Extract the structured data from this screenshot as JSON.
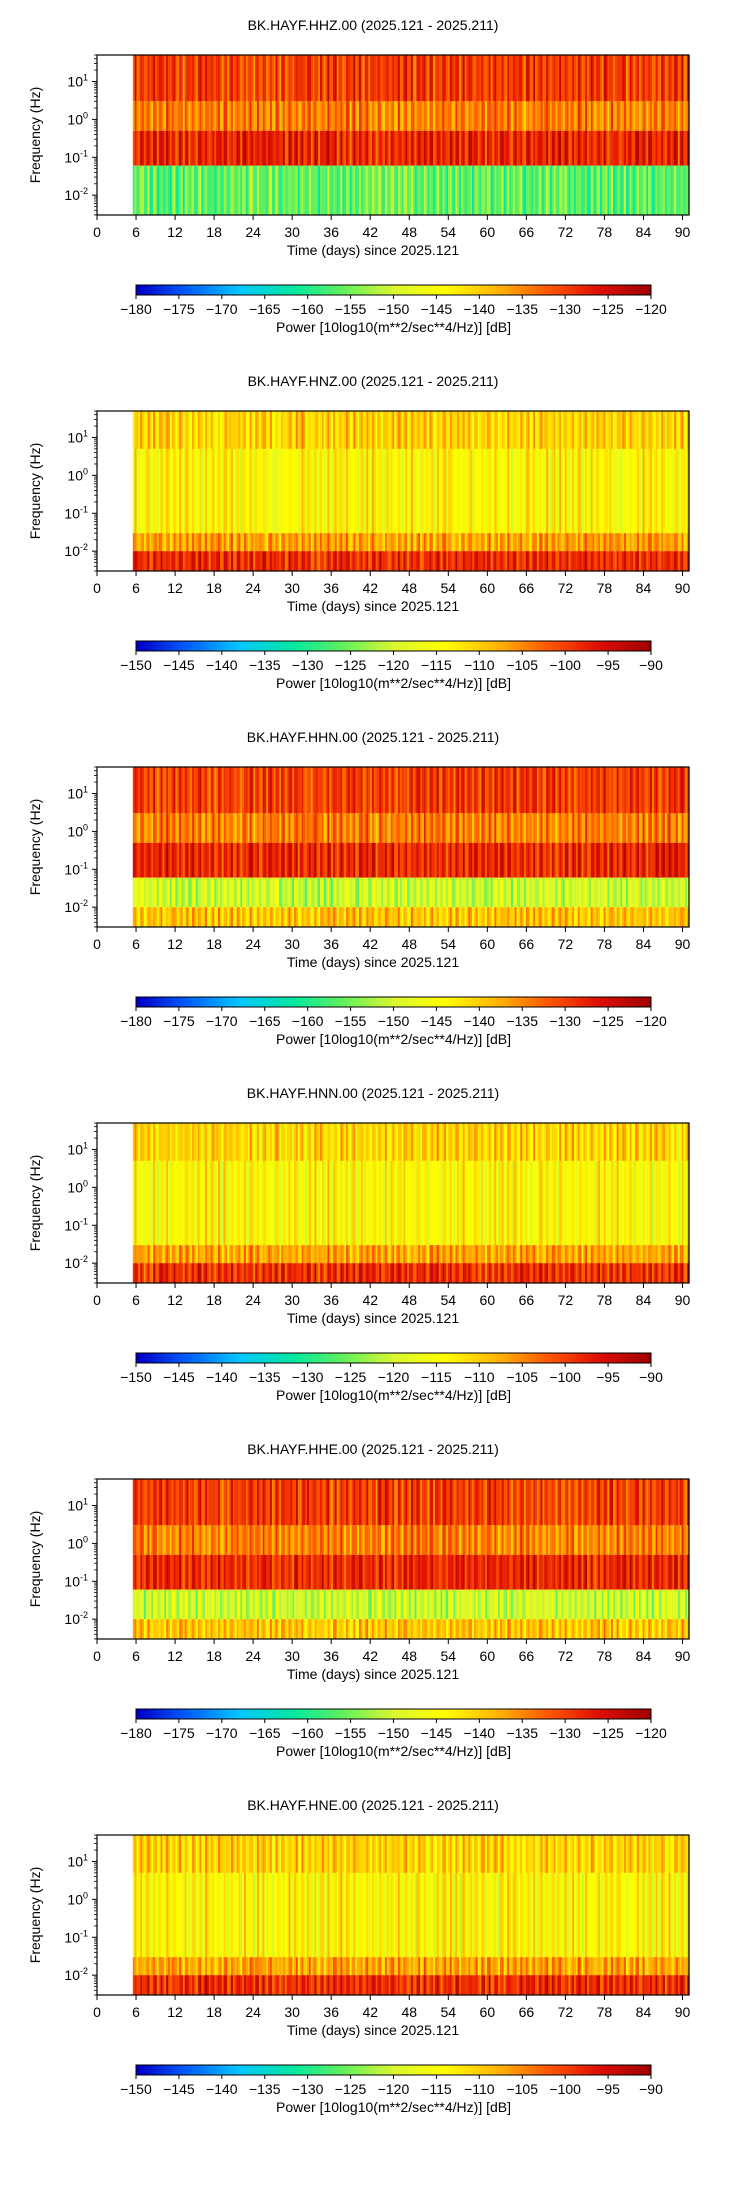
{
  "colors": {
    "colormap": [
      "#0000c8",
      "#0060ff",
      "#00c8ff",
      "#00e8a0",
      "#60f060",
      "#d8f830",
      "#ffff00",
      "#ffb800",
      "#ff5a00",
      "#e01000",
      "#a00000"
    ],
    "gap_fill": "#ffffff",
    "frame": "#000000"
  },
  "chart_data": [
    {
      "type": "heatmap",
      "title": "BK.HAYF.HHZ.00 (2025.121 - 2025.211)",
      "xlabel": "Time (days) since 2025.121",
      "ylabel": "Frequency (Hz)",
      "xticks": [
        "0",
        "6",
        "12",
        "18",
        "24",
        "30",
        "36",
        "42",
        "48",
        "54",
        "60",
        "66",
        "72",
        "78",
        "84",
        "90"
      ],
      "xlim": [
        0,
        91
      ],
      "data_start_day": 5.5,
      "yscale": "log",
      "ylim": [
        0.003,
        50
      ],
      "yticks": [
        {
          "value": 0.01,
          "base": "10",
          "exp": "-2"
        },
        {
          "value": 0.1,
          "base": "10",
          "exp": "-1"
        },
        {
          "value": 1,
          "base": "10",
          "exp": "0"
        },
        {
          "value": 10,
          "base": "10",
          "exp": "1"
        }
      ],
      "colorbar": {
        "label": "Power [10log10(m**2/sec**4/Hz)] [dB]",
        "range": [
          -180,
          -120
        ],
        "ticks": [
          "−180",
          "−175",
          "−170",
          "−165",
          "−160",
          "−155",
          "−150",
          "−145",
          "−140",
          "−135",
          "−130",
          "−125",
          "−120"
        ]
      },
      "bands": [
        {
          "fmin": 3,
          "fmax": 50,
          "level": 0.84
        },
        {
          "fmin": 0.5,
          "fmax": 3,
          "level": 0.76
        },
        {
          "fmin": 0.06,
          "fmax": 0.5,
          "level": 0.87
        },
        {
          "fmin": 0.003,
          "fmax": 0.06,
          "level": 0.4
        }
      ]
    },
    {
      "type": "heatmap",
      "title": "BK.HAYF.HNZ.00 (2025.121 - 2025.211)",
      "xlabel": "Time (days) since 2025.121",
      "ylabel": "Frequency (Hz)",
      "xticks": [
        "0",
        "6",
        "12",
        "18",
        "24",
        "30",
        "36",
        "42",
        "48",
        "54",
        "60",
        "66",
        "72",
        "78",
        "84",
        "90"
      ],
      "xlim": [
        0,
        91
      ],
      "data_start_day": 5.5,
      "yscale": "log",
      "ylim": [
        0.003,
        50
      ],
      "yticks": [
        {
          "value": 0.01,
          "base": "10",
          "exp": "-2"
        },
        {
          "value": 0.1,
          "base": "10",
          "exp": "-1"
        },
        {
          "value": 1,
          "base": "10",
          "exp": "0"
        },
        {
          "value": 10,
          "base": "10",
          "exp": "1"
        }
      ],
      "colorbar": {
        "label": "Power [10log10(m**2/sec**4/Hz)] [dB]",
        "range": [
          -150,
          -90
        ],
        "ticks": [
          "−150",
          "−145",
          "−140",
          "−135",
          "−130",
          "−125",
          "−120",
          "−115",
          "−110",
          "−105",
          "−100",
          "−95",
          "−90"
        ]
      },
      "bands": [
        {
          "fmin": 5,
          "fmax": 50,
          "level": 0.66
        },
        {
          "fmin": 0.03,
          "fmax": 5,
          "level": 0.6
        },
        {
          "fmin": 0.01,
          "fmax": 0.03,
          "level": 0.72
        },
        {
          "fmin": 0.003,
          "fmax": 0.01,
          "level": 0.86
        }
      ]
    },
    {
      "type": "heatmap",
      "title": "BK.HAYF.HHN.00 (2025.121 - 2025.211)",
      "xlabel": "Time (days) since 2025.121",
      "ylabel": "Frequency (Hz)",
      "xticks": [
        "0",
        "6",
        "12",
        "18",
        "24",
        "30",
        "36",
        "42",
        "48",
        "54",
        "60",
        "66",
        "72",
        "78",
        "84",
        "90"
      ],
      "xlim": [
        0,
        91
      ],
      "data_start_day": 5.5,
      "yscale": "log",
      "ylim": [
        0.003,
        50
      ],
      "yticks": [
        {
          "value": 0.01,
          "base": "10",
          "exp": "-2"
        },
        {
          "value": 0.1,
          "base": "10",
          "exp": "-1"
        },
        {
          "value": 1,
          "base": "10",
          "exp": "0"
        },
        {
          "value": 10,
          "base": "10",
          "exp": "1"
        }
      ],
      "colorbar": {
        "label": "Power [10log10(m**2/sec**4/Hz)] [dB]",
        "range": [
          -180,
          -120
        ],
        "ticks": [
          "−180",
          "−175",
          "−170",
          "−165",
          "−160",
          "−155",
          "−150",
          "−145",
          "−140",
          "−135",
          "−130",
          "−125",
          "−120"
        ]
      },
      "bands": [
        {
          "fmin": 3,
          "fmax": 50,
          "level": 0.84
        },
        {
          "fmin": 0.5,
          "fmax": 3,
          "level": 0.76
        },
        {
          "fmin": 0.06,
          "fmax": 0.5,
          "level": 0.87
        },
        {
          "fmin": 0.01,
          "fmax": 0.06,
          "level": 0.5
        },
        {
          "fmin": 0.003,
          "fmax": 0.01,
          "level": 0.68
        }
      ]
    },
    {
      "type": "heatmap",
      "title": "BK.HAYF.HNN.00 (2025.121 - 2025.211)",
      "xlabel": "Time (days) since 2025.121",
      "ylabel": "Frequency (Hz)",
      "xticks": [
        "0",
        "6",
        "12",
        "18",
        "24",
        "30",
        "36",
        "42",
        "48",
        "54",
        "60",
        "66",
        "72",
        "78",
        "84",
        "90"
      ],
      "xlim": [
        0,
        91
      ],
      "data_start_day": 5.5,
      "yscale": "log",
      "ylim": [
        0.003,
        50
      ],
      "yticks": [
        {
          "value": 0.01,
          "base": "10",
          "exp": "-2"
        },
        {
          "value": 0.1,
          "base": "10",
          "exp": "-1"
        },
        {
          "value": 1,
          "base": "10",
          "exp": "0"
        },
        {
          "value": 10,
          "base": "10",
          "exp": "1"
        }
      ],
      "colorbar": {
        "label": "Power [10log10(m**2/sec**4/Hz)] [dB]",
        "range": [
          -150,
          -90
        ],
        "ticks": [
          "−150",
          "−145",
          "−140",
          "−135",
          "−130",
          "−125",
          "−120",
          "−115",
          "−110",
          "−105",
          "−100",
          "−95",
          "−90"
        ]
      },
      "bands": [
        {
          "fmin": 5,
          "fmax": 50,
          "level": 0.66
        },
        {
          "fmin": 0.03,
          "fmax": 5,
          "level": 0.6
        },
        {
          "fmin": 0.01,
          "fmax": 0.03,
          "level": 0.72
        },
        {
          "fmin": 0.003,
          "fmax": 0.01,
          "level": 0.86
        }
      ]
    },
    {
      "type": "heatmap",
      "title": "BK.HAYF.HHE.00 (2025.121 - 2025.211)",
      "xlabel": "Time (days) since 2025.121",
      "ylabel": "Frequency (Hz)",
      "xticks": [
        "0",
        "6",
        "12",
        "18",
        "24",
        "30",
        "36",
        "42",
        "48",
        "54",
        "60",
        "66",
        "72",
        "78",
        "84",
        "90"
      ],
      "xlim": [
        0,
        91
      ],
      "data_start_day": 5.5,
      "yscale": "log",
      "ylim": [
        0.003,
        50
      ],
      "yticks": [
        {
          "value": 0.01,
          "base": "10",
          "exp": "-2"
        },
        {
          "value": 0.1,
          "base": "10",
          "exp": "-1"
        },
        {
          "value": 1,
          "base": "10",
          "exp": "0"
        },
        {
          "value": 10,
          "base": "10",
          "exp": "1"
        }
      ],
      "colorbar": {
        "label": "Power [10log10(m**2/sec**4/Hz)] [dB]",
        "range": [
          -180,
          -120
        ],
        "ticks": [
          "−180",
          "−175",
          "−170",
          "−165",
          "−160",
          "−155",
          "−150",
          "−145",
          "−140",
          "−135",
          "−130",
          "−125",
          "−120"
        ]
      },
      "bands": [
        {
          "fmin": 3,
          "fmax": 50,
          "level": 0.84
        },
        {
          "fmin": 0.5,
          "fmax": 3,
          "level": 0.76
        },
        {
          "fmin": 0.06,
          "fmax": 0.5,
          "level": 0.87
        },
        {
          "fmin": 0.01,
          "fmax": 0.06,
          "level": 0.5
        },
        {
          "fmin": 0.003,
          "fmax": 0.01,
          "level": 0.68
        }
      ]
    },
    {
      "type": "heatmap",
      "title": "BK.HAYF.HNE.00 (2025.121 - 2025.211)",
      "xlabel": "Time (days) since 2025.121",
      "ylabel": "Frequency (Hz)",
      "xticks": [
        "0",
        "6",
        "12",
        "18",
        "24",
        "30",
        "36",
        "42",
        "48",
        "54",
        "60",
        "66",
        "72",
        "78",
        "84",
        "90"
      ],
      "xlim": [
        0,
        91
      ],
      "data_start_day": 5.5,
      "yscale": "log",
      "ylim": [
        0.003,
        50
      ],
      "yticks": [
        {
          "value": 0.01,
          "base": "10",
          "exp": "-2"
        },
        {
          "value": 0.1,
          "base": "10",
          "exp": "-1"
        },
        {
          "value": 1,
          "base": "10",
          "exp": "0"
        },
        {
          "value": 10,
          "base": "10",
          "exp": "1"
        }
      ],
      "colorbar": {
        "label": "Power [10log10(m**2/sec**4/Hz)] [dB]",
        "range": [
          -150,
          -90
        ],
        "ticks": [
          "−150",
          "−145",
          "−140",
          "−135",
          "−130",
          "−125",
          "−120",
          "−115",
          "−110",
          "−105",
          "−100",
          "−95",
          "−90"
        ]
      },
      "bands": [
        {
          "fmin": 5,
          "fmax": 50,
          "level": 0.66
        },
        {
          "fmin": 0.03,
          "fmax": 5,
          "level": 0.6
        },
        {
          "fmin": 0.01,
          "fmax": 0.03,
          "level": 0.72
        },
        {
          "fmin": 0.003,
          "fmax": 0.01,
          "level": 0.86
        }
      ]
    }
  ]
}
